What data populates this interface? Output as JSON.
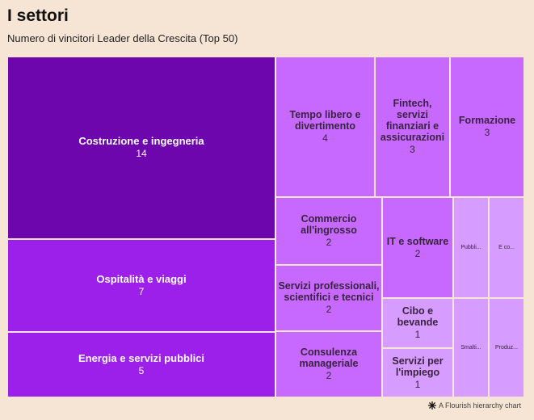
{
  "title": "I settori",
  "subtitle": "Numero di vincitori Leader della Crescita (Top 50)",
  "footer": "A Flourish hierarchy chart",
  "chart_data": {
    "type": "treemap",
    "unit": "",
    "cells": [
      {
        "name": "Costruzione e ingegneria",
        "value": 14,
        "color": "#6e06ae",
        "text_color": "#ffffff"
      },
      {
        "name": "Ospitalità e viaggi",
        "value": 7,
        "color": "#9c1fea",
        "text_color": "#ffffff"
      },
      {
        "name": "Energia e servizi pubblici",
        "value": 5,
        "color": "#9c1fea",
        "text_color": "#ffffff"
      },
      {
        "name": "Tempo libero e divertimento",
        "value": 4,
        "color": "#c769ff",
        "text_color": "#3a2340"
      },
      {
        "name": "Fintech, servizi finanziari e assicurazioni",
        "value": 3,
        "color": "#c769ff",
        "text_color": "#3a2340"
      },
      {
        "name": "Formazione",
        "value": 3,
        "color": "#c769ff",
        "text_color": "#3a2340"
      },
      {
        "name": "Commercio all'ingrosso",
        "value": 2,
        "color": "#c769ff",
        "text_color": "#3a2340"
      },
      {
        "name": "Servizi professionali, scientifici e tecnici",
        "value": 2,
        "color": "#c769ff",
        "text_color": "#3a2340"
      },
      {
        "name": "Consulenza manageriale",
        "value": 2,
        "color": "#c769ff",
        "text_color": "#3a2340"
      },
      {
        "name": "IT e software",
        "value": 2,
        "color": "#c769ff",
        "text_color": "#3a2340"
      },
      {
        "name": "Cibo e bevande",
        "value": 1,
        "color": "#d79cff",
        "text_color": "#3a2340"
      },
      {
        "name": "Servizi per l'impiego",
        "value": 1,
        "color": "#d79cff",
        "text_color": "#3a2340"
      },
      {
        "name": "Pubbli...",
        "value": 1,
        "color": "#d79cff",
        "text_color": "#3a2340",
        "value_visible": false
      },
      {
        "name": "E co...",
        "value": 1,
        "color": "#d79cff",
        "text_color": "#3a2340",
        "value_visible": false
      },
      {
        "name": "Smalti...",
        "value": 1,
        "color": "#d79cff",
        "text_color": "#3a2340",
        "value_visible": false
      },
      {
        "name": "Produz...",
        "value": 1,
        "color": "#d79cff",
        "text_color": "#3a2340",
        "value_visible": false
      }
    ]
  }
}
